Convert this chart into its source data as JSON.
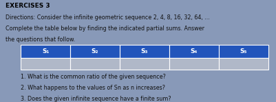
{
  "title": "EXERCISES 3",
  "line1": "Directions: Consider the infinite geometric sequence 2, 4, 8, 16, 32, 64, ...",
  "line2": "Complete the table below by finding the indicated partial sums. Answer",
  "line3": "the questions that follow.",
  "table_headers": [
    "S₁",
    "S₂",
    "S₃",
    "S₄",
    "S₅"
  ],
  "table_header_bg": "#2255bb",
  "table_header_text": "#ffffff",
  "table_row_bg": "#b0b8c8",
  "q1": "1. What is the common ratio of the given sequence?",
  "q2": "2. What happens to the values of Sn as n increases?",
  "q3": "3. Does the given infinite sequence have a finite sum?",
  "bg_color": "#8899b8",
  "text_color": "#111111",
  "title_color": "#000000",
  "figsize": [
    4.02,
    1.48
  ],
  "dpi": 100
}
